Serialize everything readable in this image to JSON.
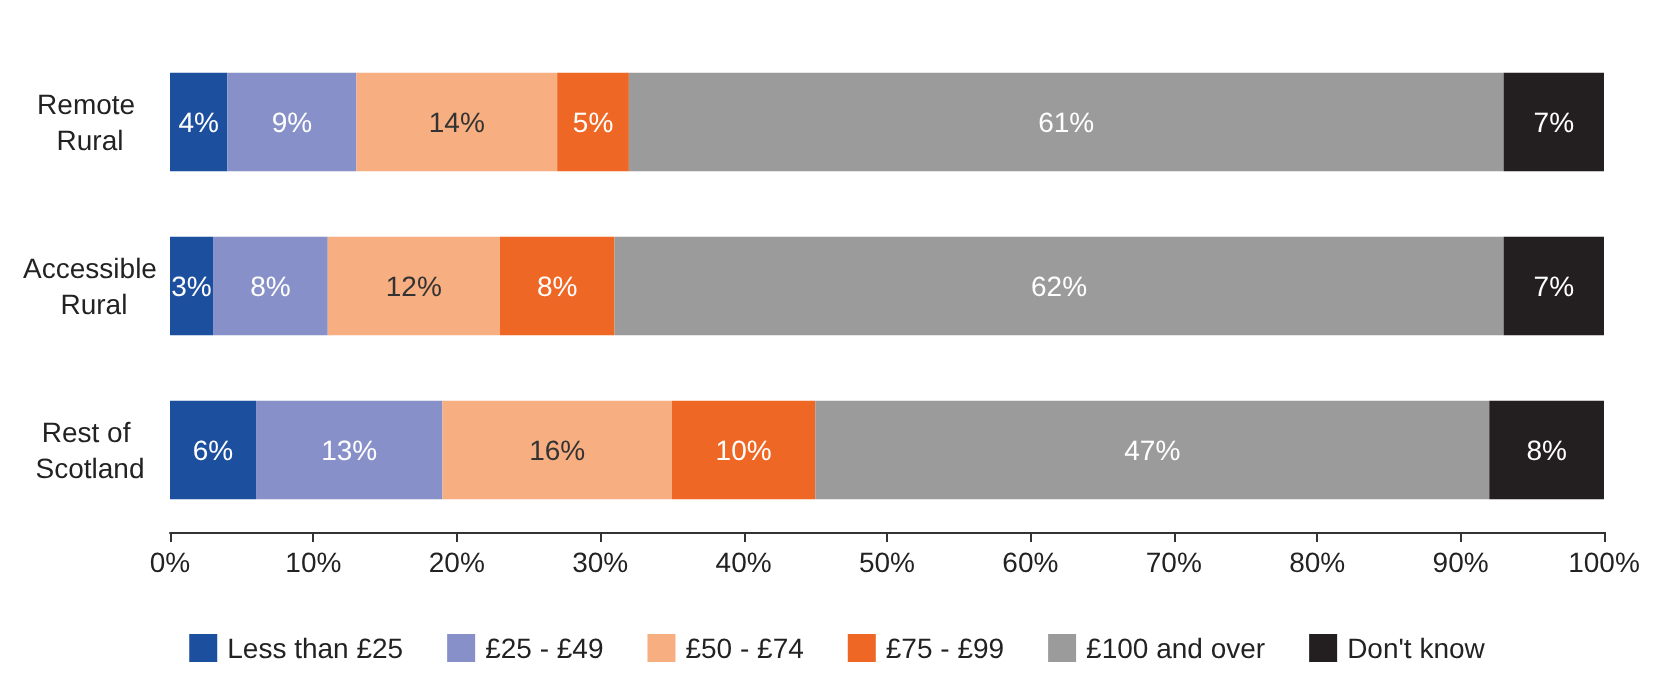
{
  "chart_data": {
    "type": "bar",
    "orientation": "horizontal",
    "stacked": true,
    "categories": [
      "Remote Rural",
      "Accessible Rural",
      "Rest of Scotland"
    ],
    "series": [
      {
        "name": "Less than £25",
        "color": "#1d4f9f",
        "values": [
          4,
          3,
          6
        ],
        "value_labels": [
          "4%",
          "3%",
          "6%"
        ]
      },
      {
        "name": "£25 - £49",
        "color": "#8790c8",
        "values": [
          9,
          8,
          13
        ],
        "value_labels": [
          "9%",
          "8%",
          "13%"
        ]
      },
      {
        "name": "£50 - £74",
        "color": "#f7ae80",
        "values": [
          14,
          12,
          16
        ],
        "value_labels": [
          "14%",
          "12%",
          "16%"
        ]
      },
      {
        "name": "£75 - £99",
        "color": "#ef6724",
        "values": [
          5,
          8,
          10
        ],
        "value_labels": [
          "5%",
          "8%",
          "10%"
        ]
      },
      {
        "name": "£100 and over",
        "color": "#9b9b9b",
        "values": [
          61,
          62,
          47
        ],
        "value_labels": [
          "61%",
          "62%",
          "47%"
        ]
      },
      {
        "name": "Don't know",
        "color": "#231f20",
        "values": [
          7,
          7,
          8
        ],
        "value_labels": [
          "7%",
          "7%",
          "8%"
        ]
      }
    ],
    "xlim": [
      0,
      100
    ],
    "xticks": [
      {
        "value": 0,
        "label": "0%"
      },
      {
        "value": 10,
        "label": "10%"
      },
      {
        "value": 20,
        "label": "20%"
      },
      {
        "value": 30,
        "label": "30%"
      },
      {
        "value": 40,
        "label": "40%"
      },
      {
        "value": 50,
        "label": "50%"
      },
      {
        "value": 60,
        "label": "60%"
      },
      {
        "value": 70,
        "label": "70%"
      },
      {
        "value": 80,
        "label": "80%"
      },
      {
        "value": 90,
        "label": "90%"
      },
      {
        "value": 100,
        "label": "100%"
      }
    ],
    "grid": false,
    "legend": "bottom"
  }
}
